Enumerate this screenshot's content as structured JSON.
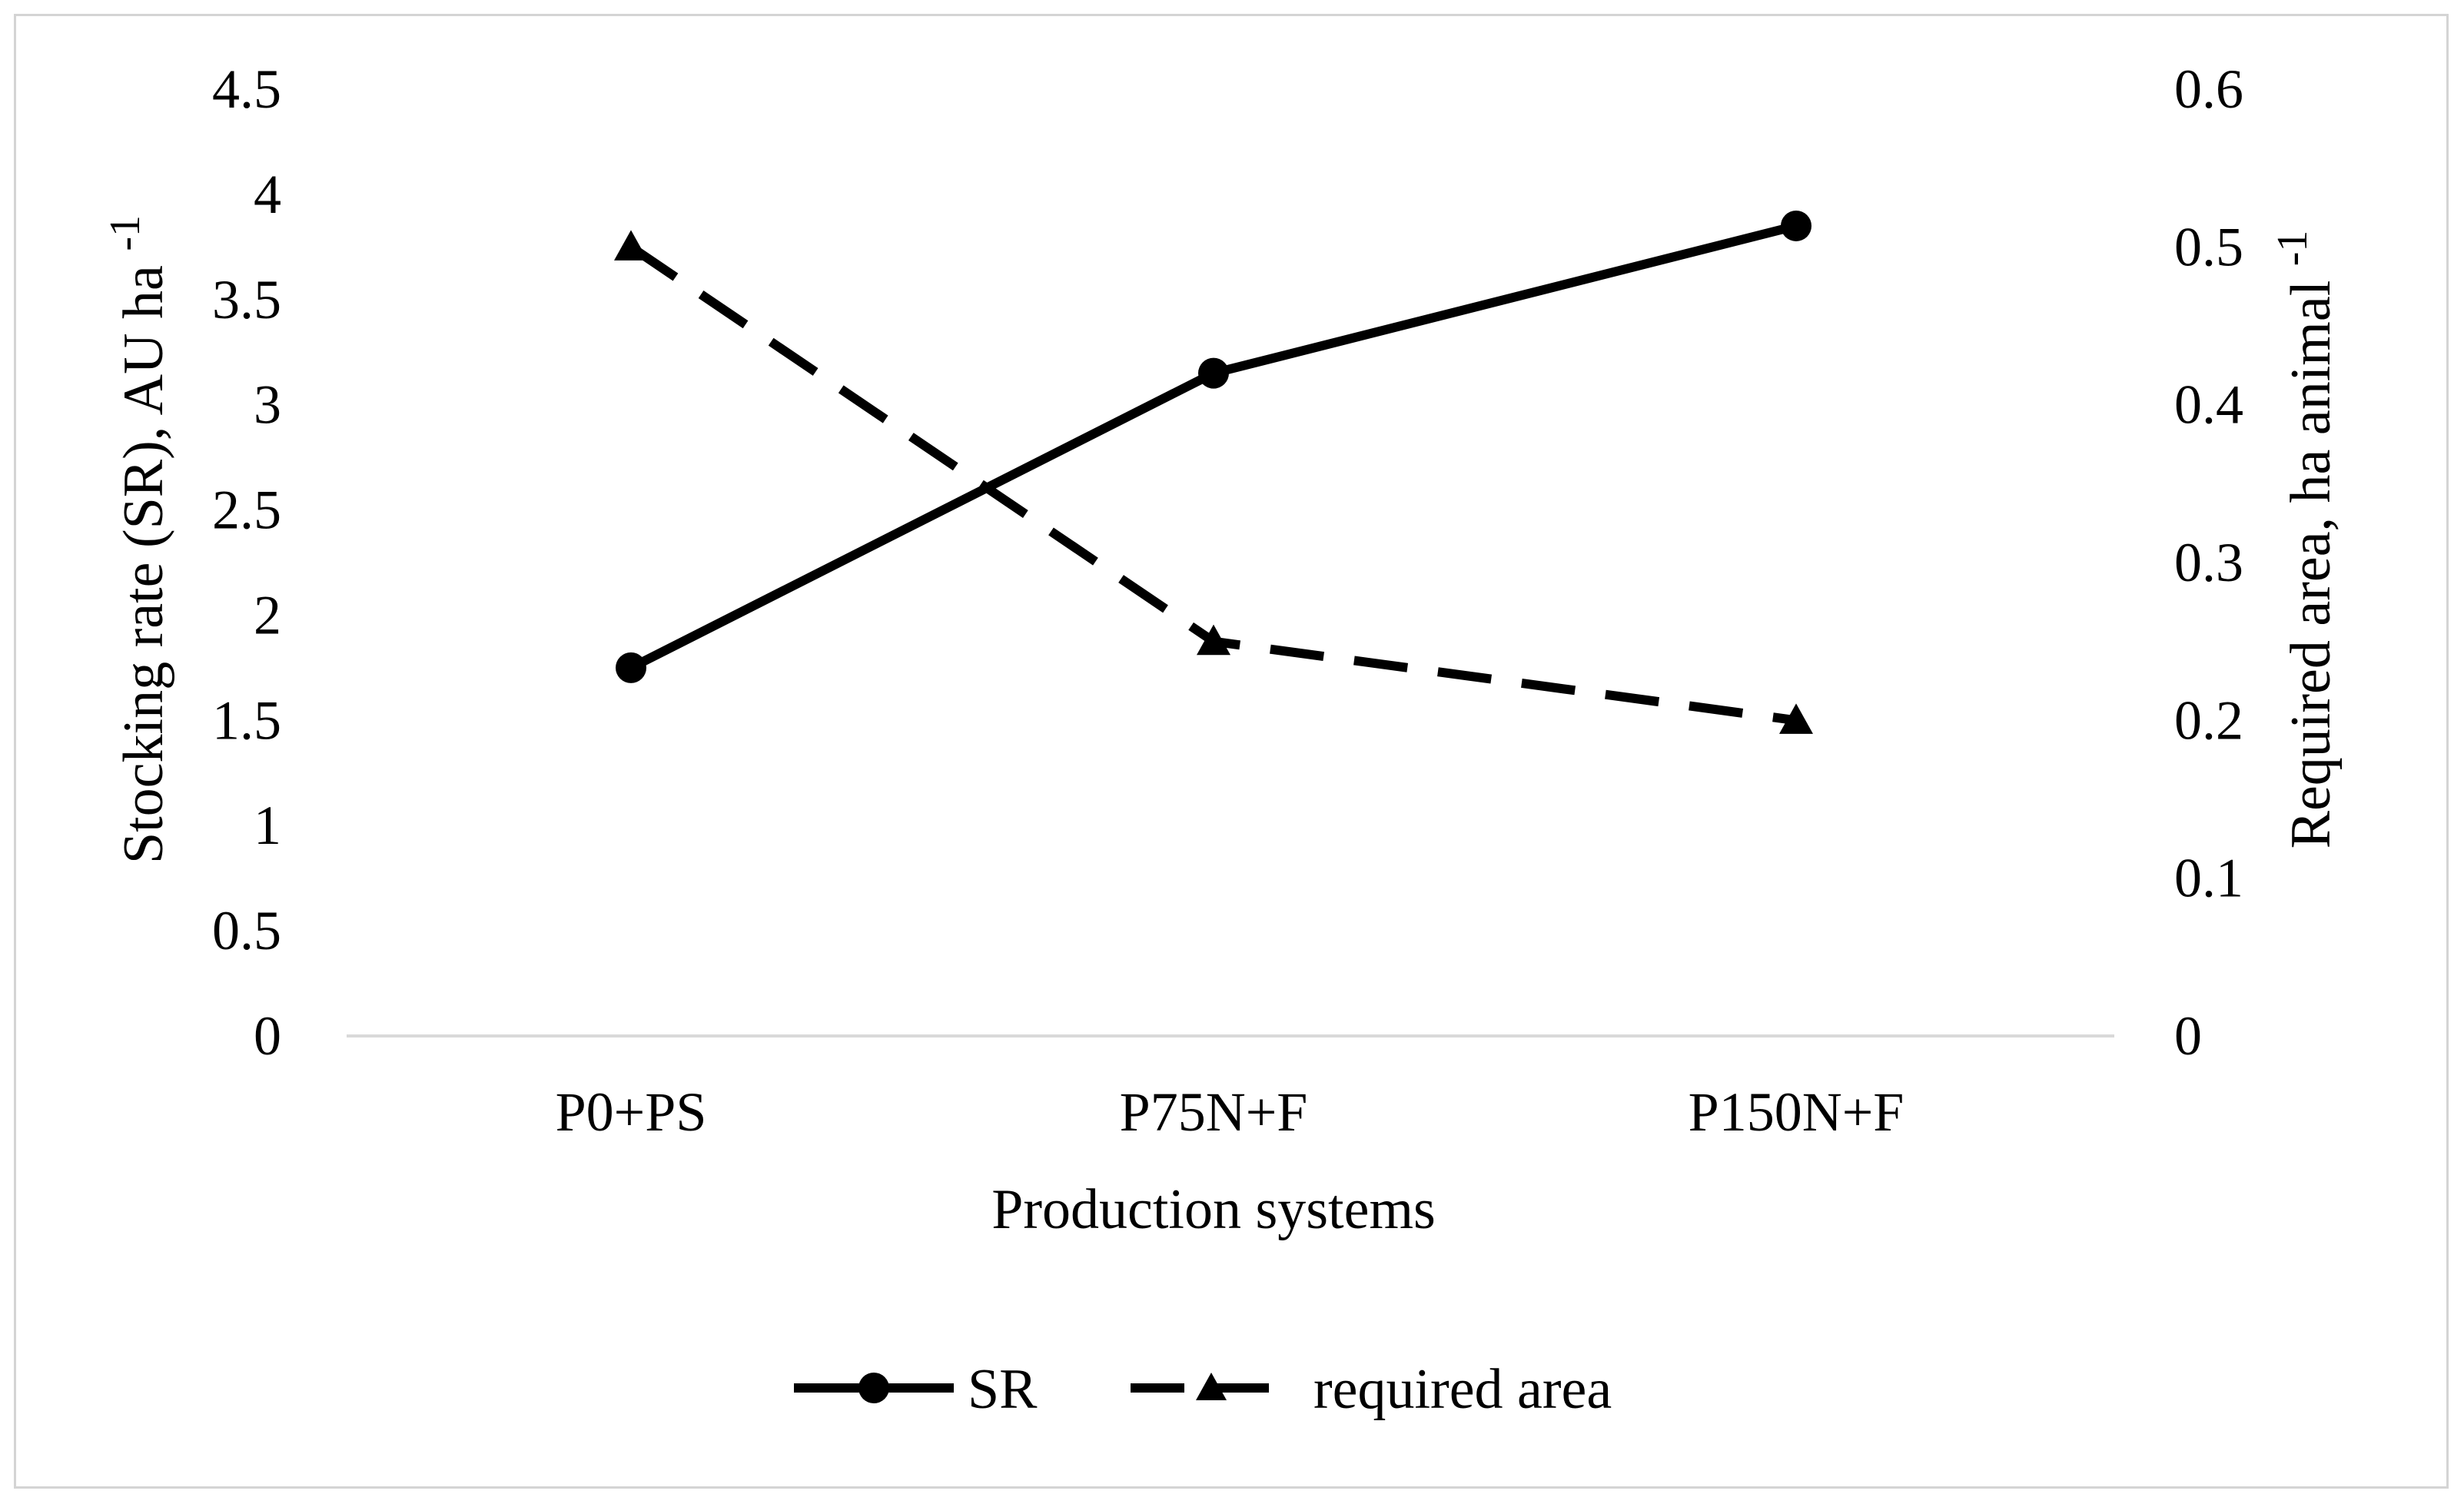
{
  "chart_data": {
    "type": "line",
    "categories": [
      "P0+PS",
      "P75N+F",
      "P150N+F"
    ],
    "xlabel": "Production systems",
    "y_left": {
      "label": "Stocking rate (SR), AU ha",
      "label_sup": "-1",
      "ylim": [
        0,
        4.5
      ],
      "ticks": [
        "0",
        "0.5",
        "1",
        "1.5",
        "2",
        "2.5",
        "3",
        "3.5",
        "4",
        "4.5"
      ]
    },
    "y_right": {
      "label": "Required area, ha animal",
      "label_sup": "-1",
      "ylim": [
        0,
        0.6
      ],
      "ticks": [
        "0",
        "0.1",
        "0.2",
        "0.3",
        "0.4",
        "0.5",
        "0.6"
      ]
    },
    "series": [
      {
        "name": "SR",
        "axis": "left",
        "style": "solid",
        "marker": "circle",
        "values": [
          1.75,
          3.15,
          3.85
        ]
      },
      {
        "name": "required area",
        "axis": "right",
        "style": "dashed",
        "marker": "triangle",
        "values": [
          0.5,
          0.25,
          0.2
        ]
      }
    ],
    "grid": false,
    "legend": "bottom",
    "colors": {
      "line": "#000000",
      "axis": "#d9d9d9",
      "frame": "#d4d4d4"
    }
  }
}
